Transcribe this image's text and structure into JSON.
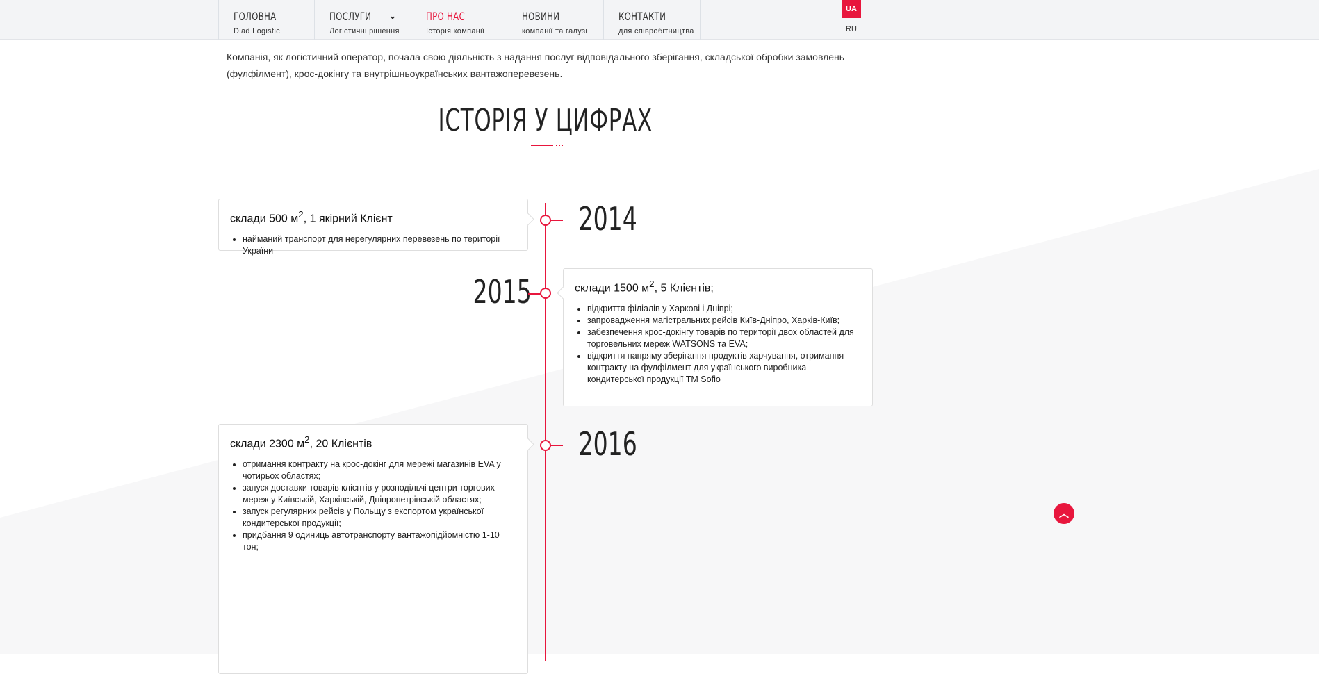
{
  "colors": {
    "accent": "#e8163d",
    "nav_bg": "#f3f4f6"
  },
  "nav": {
    "items": [
      {
        "title": "ГОЛОВНА",
        "subtitle": "Diad Logistic"
      },
      {
        "title": "ПОСЛУГИ",
        "subtitle": "Логістичні рішення",
        "icon": "chevron-down-icon"
      },
      {
        "title": "ПРО НАС",
        "subtitle": "Історія компанії",
        "active": true
      },
      {
        "title": "НОВИНИ",
        "subtitle": "компанії та галузі"
      },
      {
        "title": "КОНТАКТИ",
        "subtitle": "для співробітництва"
      }
    ],
    "lang": {
      "active": "UA",
      "other": "RU"
    }
  },
  "intro": "Компанія, як логістичний оператор, почала свою діяльність з надання послуг відповідального зберігання, складської обробки замовлень (фулфілмент), крос-докінгу та внутрішньоукраїнських вантажоперевезень.",
  "section_title": "ІСТОРІЯ У ЦИФРАХ",
  "timeline": [
    {
      "year": "2014",
      "title_pre": "склади 500 м",
      "sup": "2",
      "title_post": ", 1 якірний Клієнт",
      "items": [
        "найманий транспорт для нерегулярних перевезень по території України"
      ]
    },
    {
      "year": "2015",
      "title_pre": "склади 1500 м",
      "sup": "2",
      "title_post": ", 5 Клієнтів;",
      "items": [
        "відкриття філіалів у Харкові і Дніпрі;",
        "запровадження магістральних рейсів Київ-Дніпро, Харків-Київ;",
        "забезпечення крос-докінгу товарів по території двох областей для торговельних мереж WATSONS та EVA;",
        "відкриття напряму зберігання продуктів харчування, отримання контракту на фулфілмент для українського виробника кондитерської продукції ТМ Sofio"
      ]
    },
    {
      "year": "2016",
      "title_pre": "склади 2300 м",
      "sup": "2",
      "title_post": ", 20 Клієнтів",
      "items": [
        "отримання контракту на крос-докінг для мережі магазинів EVA у чотирьох областях;",
        "запуск доставки товарів клієнтів у розподільчі центри торгових мереж у Київській, Харківській, Дніпропетрівській областях;",
        "запуск регулярних рейсів у Польщу з експортом української кондитерської продукції;",
        "придбання 9 одиниць автотранспорту вантажопідйомністю 1-10 тон;"
      ]
    }
  ],
  "scroll_top_icon": "chevron-up-icon"
}
